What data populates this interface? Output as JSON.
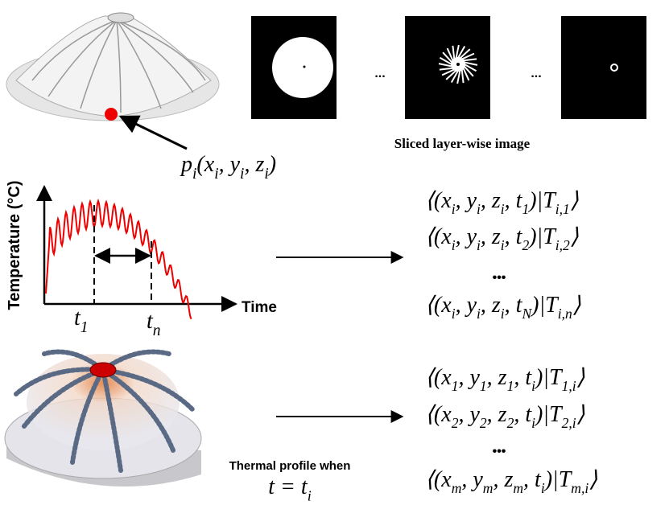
{
  "labels": {
    "sliced": "Sliced layer-wise image",
    "gap1": "...",
    "gap2": "...",
    "y_axis": "Temperature (°C)",
    "x_axis": "Time",
    "thermal": "Thermal profile when",
    "dots_top": "•••",
    "dots_bottom": "•••"
  },
  "math": {
    "point": [
      {
        "t": "p",
        "s": "i"
      },
      {
        "t": "(x",
        "s": "i"
      },
      {
        "t": ", y",
        "s": "i"
      },
      {
        "t": ", z",
        "s": "i"
      },
      {
        "t": ")"
      }
    ],
    "t1": [
      {
        "t": "t",
        "s": "1"
      }
    ],
    "tn": [
      {
        "t": "t",
        "s": "n"
      }
    ],
    "t_eq": [
      {
        "t": "t = t",
        "s": "i"
      }
    ]
  },
  "formulas_top": [
    [
      {
        "t": "⟨(x",
        "s": "i"
      },
      {
        "t": ", y",
        "s": "i"
      },
      {
        "t": ", z",
        "s": "i"
      },
      {
        "t": ", t",
        "s": "1"
      },
      {
        "t": ")|T",
        "s": "i,1"
      },
      {
        "t": "⟩"
      }
    ],
    [
      {
        "t": "⟨(x",
        "s": "i"
      },
      {
        "t": ", y",
        "s": "i"
      },
      {
        "t": ", z",
        "s": "i"
      },
      {
        "t": ", t",
        "s": "2"
      },
      {
        "t": ")|T",
        "s": "i,2"
      },
      {
        "t": "⟩"
      }
    ],
    [
      {
        "t": "⟨(x",
        "s": "i"
      },
      {
        "t": ", y",
        "s": "i"
      },
      {
        "t": ", z",
        "s": "i"
      },
      {
        "t": ", t",
        "s": "N"
      },
      {
        "t": ")|T",
        "s": "i,n"
      },
      {
        "t": "⟩"
      }
    ]
  ],
  "formulas_bottom": [
    [
      {
        "t": "⟨(x",
        "s": "1"
      },
      {
        "t": ", y",
        "s": "1"
      },
      {
        "t": ", z",
        "s": "1"
      },
      {
        "t": ", t",
        "s": "i"
      },
      {
        "t": ")|T",
        "s": "1,i"
      },
      {
        "t": "⟩"
      }
    ],
    [
      {
        "t": "⟨(x",
        "s": "2"
      },
      {
        "t": ", y",
        "s": "2"
      },
      {
        "t": ", z",
        "s": "2"
      },
      {
        "t": ", t",
        "s": "i"
      },
      {
        "t": ")|T",
        "s": "2,i"
      },
      {
        "t": "⟩"
      }
    ],
    [
      {
        "t": "⟨(x",
        "s": "m"
      },
      {
        "t": ", y",
        "s": "m"
      },
      {
        "t": ", z",
        "s": "m"
      },
      {
        "t": ", t",
        "s": "i"
      },
      {
        "t": ")|T",
        "s": "m,i"
      },
      {
        "t": "⟩"
      }
    ]
  ]
}
